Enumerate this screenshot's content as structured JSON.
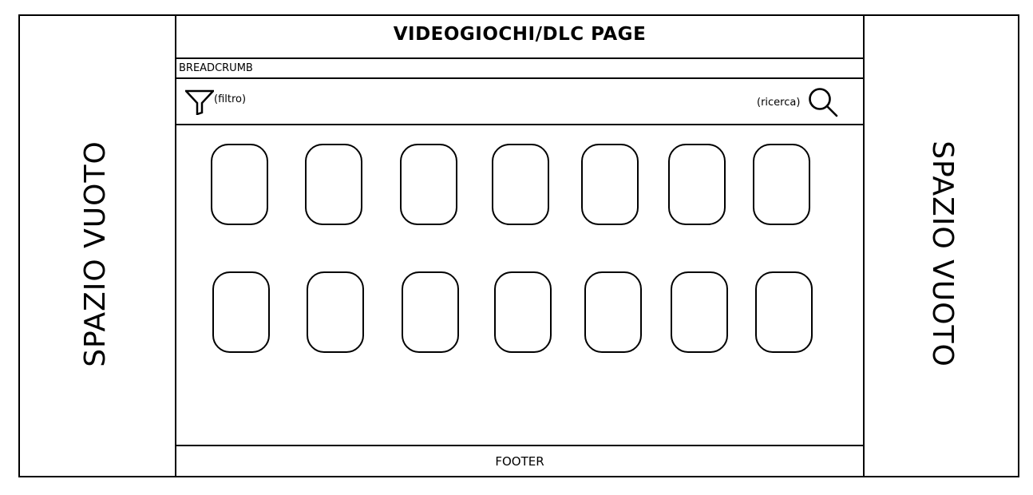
{
  "side_left": {
    "label": "SPAZIO VUOTO"
  },
  "side_right": {
    "label": "SPAZIO VUOTO"
  },
  "header": {
    "title": "VIDEOGIOCHI/DLC PAGE"
  },
  "breadcrumb": {
    "label": "BREADCRUMB"
  },
  "toolbar": {
    "filter_label": "(filtro)",
    "filter_icon": "funnel-icon",
    "search_label": "(ricerca)",
    "search_icon": "magnifier-icon"
  },
  "grid": {
    "rows": 2,
    "columns": 7
  },
  "footer": {
    "label": "FOOTER"
  }
}
